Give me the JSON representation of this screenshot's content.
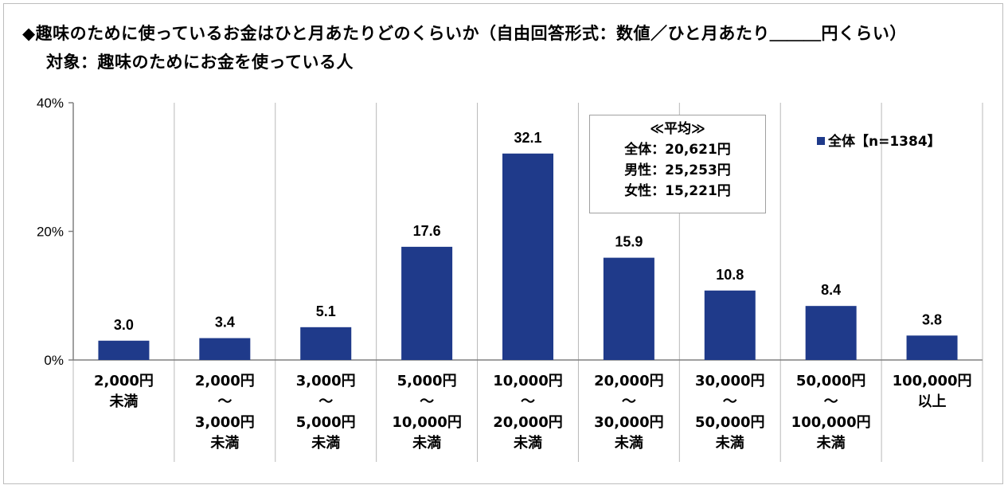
{
  "header": {
    "title": "◆趣味のために使っているお金はひと月あたりどのくらいか（自由回答形式：数値／ひと月あたり＿＿＿円くらい）",
    "subtitle": "対象：趣味のためにお金を使っている人"
  },
  "colors": {
    "bar": "#1f3a8a",
    "grid": "#b8b8b8",
    "axis": "#808080"
  },
  "average_box": {
    "heading": "≪平均≫",
    "lines": [
      "全体：20,621円",
      "男性：25,253円",
      "女性：15,221円"
    ]
  },
  "legend": {
    "label": "全体【n=1384】"
  },
  "chart_data": {
    "type": "bar",
    "title": "",
    "xlabel": "",
    "ylabel": "",
    "ylim": [
      0,
      40
    ],
    "yticks": [
      "0%",
      "20%",
      "40%"
    ],
    "categories": [
      [
        "2,000円",
        "未満"
      ],
      [
        "2,000円",
        "～",
        "3,000円",
        "未満"
      ],
      [
        "3,000円",
        "～",
        "5,000円",
        "未満"
      ],
      [
        "5,000円",
        "～",
        "10,000円",
        "未満"
      ],
      [
        "10,000円",
        "～",
        "20,000円",
        "未満"
      ],
      [
        "20,000円",
        "～",
        "30,000円",
        "未満"
      ],
      [
        "30,000円",
        "～",
        "50,000円",
        "未満"
      ],
      [
        "50,000円",
        "～",
        "100,000円",
        "未満"
      ],
      [
        "100,000円",
        "以上"
      ]
    ],
    "series": [
      {
        "name": "全体【n=1384】",
        "values": [
          3.0,
          3.4,
          5.1,
          17.6,
          32.1,
          15.9,
          10.8,
          8.4,
          3.8
        ],
        "value_labels": [
          "3.0",
          "3.4",
          "5.1",
          "17.6",
          "32.1",
          "15.9",
          "10.8",
          "8.4",
          "3.8"
        ]
      }
    ]
  }
}
